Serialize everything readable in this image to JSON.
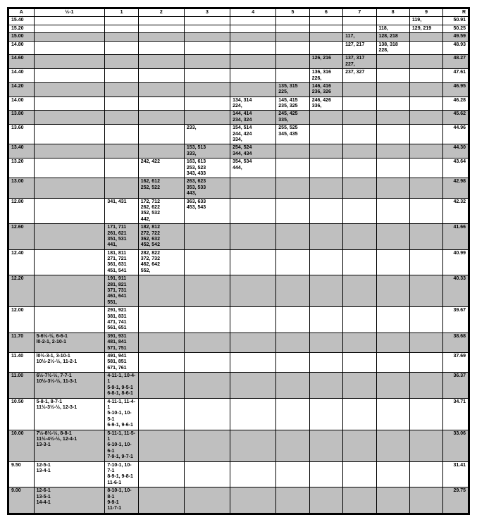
{
  "table": {
    "columns": [
      "A",
      "½-1",
      "1",
      "2",
      "3",
      "4",
      "5",
      "6",
      "7",
      "8",
      "9",
      "R"
    ],
    "column_classes": [
      "col-a",
      "col-m1",
      "col-1",
      "col-234",
      "col-234",
      "col-234",
      "col-567",
      "col-567",
      "col-567",
      "col-8",
      "col-9",
      "col-r"
    ],
    "rows": [
      {
        "shaded": false,
        "cells": [
          "15.40",
          "",
          "",
          "",
          "",
          "",
          "",
          "",
          "",
          "",
          "119,",
          "50.91"
        ]
      },
      {
        "shaded": false,
        "cells": [
          "15.20",
          "",
          "",
          "",
          "",
          "",
          "",
          "",
          "",
          "118,",
          "129, 219",
          "50.25"
        ]
      },
      {
        "shaded": true,
        "cells": [
          "15.00",
          "",
          "",
          "",
          "",
          "",
          "",
          "",
          "117,",
          "128, 218",
          "",
          "49.59"
        ]
      },
      {
        "shaded": false,
        "cells": [
          "14.80",
          "",
          "",
          "",
          "",
          "",
          "",
          "",
          "127, 217",
          "138, 318\n228,",
          "",
          "48.93"
        ]
      },
      {
        "shaded": true,
        "cells": [
          "14.60",
          "",
          "",
          "",
          "",
          "",
          "",
          "126, 216",
          "137, 317\n227,",
          "",
          "",
          "48.27"
        ]
      },
      {
        "shaded": false,
        "cells": [
          "14.40",
          "",
          "",
          "",
          "",
          "",
          "",
          "136, 316\n226,",
          "237, 327",
          "",
          "",
          "47.61"
        ]
      },
      {
        "shaded": true,
        "cells": [
          "14.20",
          "",
          "",
          "",
          "",
          "",
          "135, 315\n225,",
          "146, 416\n236, 326",
          "",
          "",
          "",
          "46.95"
        ]
      },
      {
        "shaded": false,
        "cells": [
          "14.00",
          "",
          "",
          "",
          "",
          "134, 314\n224,",
          "145, 415\n235, 325",
          "246, 426\n336,",
          "",
          "",
          "",
          "46.28"
        ]
      },
      {
        "shaded": true,
        "cells": [
          "13.80",
          "",
          "",
          "",
          "",
          "144, 414\n234, 324",
          "245, 425\n335,",
          "",
          "",
          "",
          "",
          "45.62"
        ]
      },
      {
        "shaded": false,
        "cells": [
          "13.60",
          "",
          "",
          "",
          "233,",
          "154, 514\n244, 424\n334,",
          "255, 525\n345, 435",
          "",
          "",
          "",
          "",
          "44.96"
        ]
      },
      {
        "shaded": true,
        "cells": [
          "13.40",
          "",
          "",
          "",
          "153, 513\n333,",
          "254, 524\n344, 434",
          "",
          "",
          "",
          "",
          "",
          "44.30"
        ]
      },
      {
        "shaded": false,
        "cells": [
          "13.20",
          "",
          "",
          "242, 422",
          "163, 613\n253, 523\n343, 433",
          "354, 534\n444,",
          "",
          "",
          "",
          "",
          "",
          "43.64"
        ]
      },
      {
        "shaded": true,
        "cells": [
          "13.00",
          "",
          "",
          "162, 612\n252, 522",
          "263, 623\n353, 533\n443,",
          "",
          "",
          "",
          "",
          "",
          "",
          "42.98"
        ]
      },
      {
        "shaded": false,
        "cells": [
          "12.80",
          "",
          "341, 431",
          "172, 712\n262, 622\n352, 532\n442,",
          "363, 633\n453, 543",
          "",
          "",
          "",
          "",
          "",
          "",
          "42.32"
        ]
      },
      {
        "shaded": true,
        "cells": [
          "12.60",
          "",
          "171, 711\n261, 621\n351, 531\n441,",
          "182, 812\n272, 722\n362, 632\n452, 542",
          "",
          "",
          "",
          "",
          "",
          "",
          "",
          "41.66"
        ]
      },
      {
        "shaded": false,
        "cells": [
          "12.40",
          "",
          "181, 811\n271, 721\n361, 631\n451, 541",
          "282, 822\n372, 732\n462, 642\n552,",
          "",
          "",
          "",
          "",
          "",
          "",
          "",
          "40.99"
        ]
      },
      {
        "shaded": true,
        "cells": [
          "12.20",
          "",
          "191, 911\n281, 821\n371, 731\n461, 641\n551,",
          "",
          "",
          "",
          "",
          "",
          "",
          "",
          "",
          "40.33"
        ]
      },
      {
        "shaded": false,
        "cells": [
          "12.00",
          "",
          "291, 921\n381, 831\n471, 741\n561, 651",
          "",
          "",
          "",
          "",
          "",
          "",
          "",
          "",
          "39.67"
        ]
      },
      {
        "shaded": true,
        "cells": [
          "11.70",
          "5-6½-½, 6-6-1\nl0-2-1, 2-10-1",
          "391, 931\n481, 841\n571, 751",
          "",
          "",
          "",
          "",
          "",
          "",
          "",
          "",
          "38.68"
        ]
      },
      {
        "shaded": false,
        "cells": [
          "11.40",
          "l0½-3-1, 3-10-1\n10½-2½-½, 11-2-1",
          "491, 941\n581, 851\n671, 761",
          "",
          "",
          "",
          "",
          "",
          "",
          "",
          "",
          "37.69"
        ]
      },
      {
        "shaded": true,
        "cells": [
          "11.00",
          "6½-7½-½, 7-7-1\n10½-3½-½, 11-3-1",
          "4-11-1, 10-4-1\n5-9-1, 9-5-1\n6-8-1, 8-6-1",
          "",
          "",
          "",
          "",
          "",
          "",
          "",
          "",
          "36.37"
        ]
      },
      {
        "shaded": false,
        "cells": [
          "10.50",
          "5-8-1, 8-7-1\n11½-3½-½, 12-3-1",
          "4-11-1, 11-4-1\n5-10-1, 10-5-1\n6-9-1, 9-6-1",
          "",
          "",
          "",
          "",
          "",
          "",
          "",
          "",
          "34.71"
        ]
      },
      {
        "shaded": true,
        "cells": [
          "10.00",
          "7½-8½-½, 8-8-1\n11½-4½-½, 12-4-1\n13-3-1",
          "5-11-1, 11-5-1\n6-10-1, 10-6-1\n7-9-1, 9-7-1",
          "",
          "",
          "",
          "",
          "",
          "",
          "",
          "",
          "33.06"
        ]
      },
      {
        "shaded": false,
        "cells": [
          "9.50",
          "12-5-1\n13-4-1",
          "7-10-1, 10-7-1\n8-9-1, 9-8-1\n11-6-1",
          "",
          "",
          "",
          "",
          "",
          "",
          "",
          "",
          "31.41"
        ]
      },
      {
        "shaded": true,
        "cells": [
          "9.00",
          "12-6-1\n13-5-1\n14-4-1",
          "8-10-1, 10-8-1\n9-9-1\n11-7-1",
          "",
          "",
          "",
          "",
          "",
          "",
          "",
          "",
          "29.75"
        ]
      }
    ]
  },
  "colors": {
    "shaded": "#bfbfbf",
    "border": "#000000",
    "bg": "#ffffff"
  }
}
